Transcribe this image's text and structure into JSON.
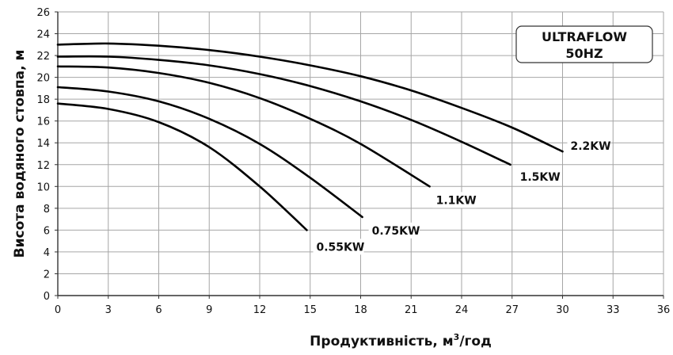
{
  "chart_data": {
    "type": "line",
    "title": "",
    "xlabel": "Продуктивність, м",
    "xlabel_sup": "3",
    "xlabel_tail": "/год",
    "ylabel": "Висота водяного стовпа, м",
    "xlim": [
      0,
      36
    ],
    "ylim": [
      0,
      26
    ],
    "x_ticks": [
      0,
      3,
      6,
      9,
      12,
      15,
      18,
      21,
      24,
      27,
      30,
      33,
      36
    ],
    "x_tick_labels": [
      "0",
      "3",
      "6",
      "9",
      "12",
      "15",
      "18",
      "21",
      "24",
      "27",
      "30",
      "33",
      "36"
    ],
    "y_ticks": [
      0,
      2,
      4,
      6,
      8,
      10,
      12,
      14,
      16,
      18,
      20,
      22,
      24,
      26
    ],
    "y_tick_labels": [
      "0",
      "2",
      "4",
      "6",
      "8",
      "10",
      "12",
      "14",
      "16",
      "18",
      "20",
      "22",
      "24",
      "26"
    ],
    "grid": true,
    "badge": {
      "line1": "ULTRAFLOW",
      "line2": "50HZ"
    },
    "series": [
      {
        "name": "0.55KW",
        "x": [
          0,
          3,
          6,
          9,
          12,
          14.8
        ],
        "y": [
          17.6,
          17.1,
          15.9,
          13.6,
          10.0,
          6.0
        ]
      },
      {
        "name": "0.75KW",
        "x": [
          0,
          3,
          6,
          9,
          12,
          15,
          18.1
        ],
        "y": [
          19.1,
          18.7,
          17.8,
          16.2,
          13.9,
          10.8,
          7.2
        ]
      },
      {
        "name": "1.1KW",
        "x": [
          0,
          3,
          6,
          9,
          12,
          15,
          18,
          22.1
        ],
        "y": [
          21.0,
          20.9,
          20.4,
          19.5,
          18.1,
          16.2,
          13.9,
          10.0
        ]
      },
      {
        "name": "1.5KW",
        "x": [
          0,
          3,
          6,
          9,
          12,
          15,
          18,
          21,
          24,
          26.9
        ],
        "y": [
          21.9,
          21.9,
          21.6,
          21.1,
          20.3,
          19.2,
          17.8,
          16.1,
          14.1,
          12.0
        ]
      },
      {
        "name": "2.2KW",
        "x": [
          0,
          3,
          6,
          9,
          12,
          15,
          18,
          21,
          24,
          27,
          30
        ],
        "y": [
          23.0,
          23.1,
          22.9,
          22.5,
          21.9,
          21.1,
          20.1,
          18.8,
          17.2,
          15.4,
          13.2
        ]
      }
    ]
  }
}
